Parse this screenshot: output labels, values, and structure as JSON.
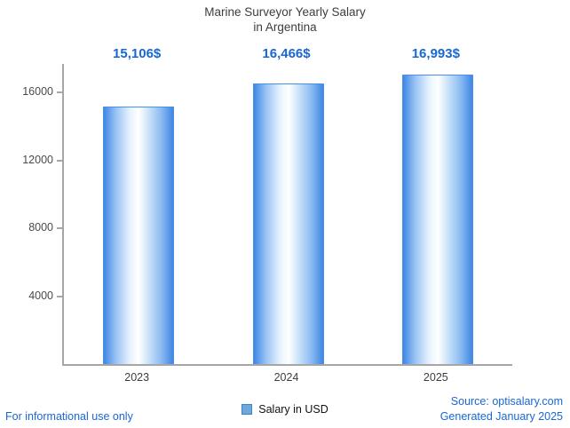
{
  "title": {
    "line1": "Marine Surveyor Yearly Salary",
    "line2": "in Argentina"
  },
  "legend": {
    "label": "Salary in USD"
  },
  "footer": {
    "left": "For informational use only",
    "source": "Source: optisalary.com",
    "generated": "Generated January 2025"
  },
  "colors": {
    "accent_blue": "#1967d2",
    "bar_edge_blue": "#4a8fe8",
    "bar_center": "#ffffff",
    "axis_gray": "#a6a6a6"
  },
  "chart_data": {
    "type": "bar",
    "title": "Marine Surveyor Yearly Salary in Argentina",
    "categories": [
      "2023",
      "2024",
      "2025"
    ],
    "values": [
      15106,
      16466,
      16993
    ],
    "value_labels": [
      "15,106$",
      "16,466$",
      "16,993$"
    ],
    "series": [
      {
        "name": "Salary in USD",
        "values": [
          15106,
          16466,
          16993
        ]
      }
    ],
    "xlabel": "",
    "ylabel": "",
    "ylim": [
      0,
      17600
    ],
    "yticks": [
      4000,
      8000,
      12000,
      16000
    ],
    "grid": false,
    "legend_position": "bottom"
  }
}
